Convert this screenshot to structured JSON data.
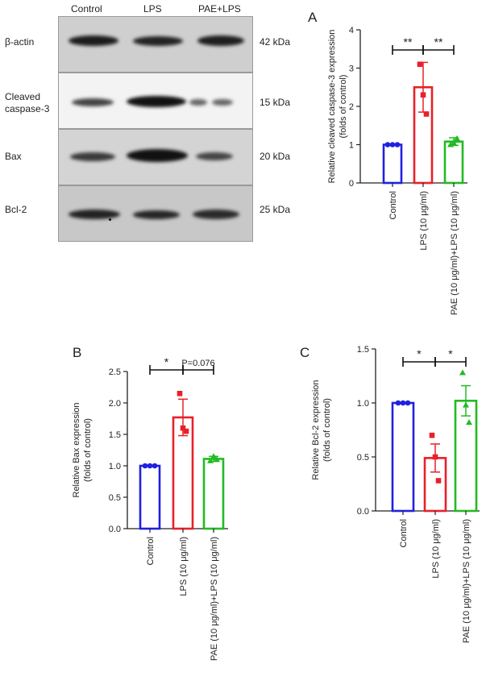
{
  "figure": {
    "blot": {
      "lanes": [
        "Control",
        "LPS",
        "PAE+LPS"
      ],
      "strips": [
        {
          "protein": "β-actin",
          "size": "42 kDa"
        },
        {
          "protein": "Cleaved caspase-3",
          "protein_lines": [
            "Cleaved",
            "caspase-3"
          ],
          "size": "15 kDa"
        },
        {
          "protein": "Bax",
          "size": "20 kDa"
        },
        {
          "protein": "Bcl-2",
          "size": "25 kDa"
        }
      ]
    },
    "panels": {
      "a": "A",
      "b": "B",
      "c": "C"
    },
    "colors": {
      "control": "#2020e0",
      "lps": "#e8202a",
      "pae": "#22bb22",
      "axis": "#222222"
    }
  },
  "chart_data": [
    {
      "panel": "A",
      "type": "bar",
      "categories": [
        "Control",
        "LPS (10 μg/ml)",
        "PAE (10 μg/ml)+LPS (10 μg/ml)"
      ],
      "values": [
        1.0,
        2.5,
        1.08
      ],
      "sem": [
        0.0,
        0.65,
        0.1
      ],
      "points": [
        [
          1.0,
          1.0,
          1.0
        ],
        [
          3.1,
          2.3,
          1.8
        ],
        [
          1.0,
          1.05,
          1.16
        ]
      ],
      "markers": [
        "circle",
        "square",
        "triangle"
      ],
      "ylabel": "Relative cleaved caspase-3 expression (folds of control)",
      "ylabel_lines": [
        "Relative cleaved caspase-3 expression",
        "(folds of control)"
      ],
      "ylim": [
        0,
        4
      ],
      "yticks": [
        "0",
        "1",
        "2",
        "3",
        "4"
      ],
      "significance": [
        {
          "from": 0,
          "to": 1,
          "label": "**"
        },
        {
          "from": 1,
          "to": 2,
          "label": "**"
        }
      ]
    },
    {
      "panel": "B",
      "type": "bar",
      "categories": [
        "Control",
        "LPS (10 μg/ml)",
        "PAE (10 μg/ml)+LPS (10 μg/ml)"
      ],
      "values": [
        1.0,
        1.77,
        1.11
      ],
      "sem": [
        0.0,
        0.29,
        0.04
      ],
      "points": [
        [
          1.0,
          1.0,
          1.0
        ],
        [
          2.15,
          1.6,
          1.55
        ],
        [
          1.08,
          1.15,
          1.1
        ]
      ],
      "markers": [
        "circle",
        "square",
        "triangle"
      ],
      "ylabel": "Relative Bax expression (folds of control)",
      "ylabel_lines": [
        "Relative Bax expression",
        "(folds of control)"
      ],
      "ylim": [
        0,
        2.5
      ],
      "yticks": [
        "0.0",
        "0.5",
        "1.0",
        "1.5",
        "2.0",
        "2.5"
      ],
      "significance": [
        {
          "from": 0,
          "to": 1,
          "label": "*"
        },
        {
          "from": 1,
          "to": 2,
          "label": "P=0.076"
        }
      ]
    },
    {
      "panel": "C",
      "type": "bar",
      "categories": [
        "Control",
        "LPS (10 μg/ml)",
        "PAE (10 μg/ml)+LPS (10 μg/ml)"
      ],
      "values": [
        1.0,
        0.49,
        1.02
      ],
      "sem": [
        0.0,
        0.13,
        0.14
      ],
      "points": [
        [
          1.0,
          1.0,
          1.0
        ],
        [
          0.7,
          0.5,
          0.28
        ],
        [
          1.28,
          0.98,
          0.82
        ]
      ],
      "markers": [
        "circle",
        "square",
        "triangle"
      ],
      "ylabel": "Relative Bcl-2 expression (folds of control)",
      "ylabel_lines": [
        "Relative Bcl-2 expression",
        "(folds of control)"
      ],
      "ylim": [
        0,
        1.5
      ],
      "yticks": [
        "0.0",
        "0.5",
        "1.0",
        "1.5"
      ],
      "significance": [
        {
          "from": 0,
          "to": 1,
          "label": "*"
        },
        {
          "from": 1,
          "to": 2,
          "label": "*"
        }
      ]
    }
  ]
}
